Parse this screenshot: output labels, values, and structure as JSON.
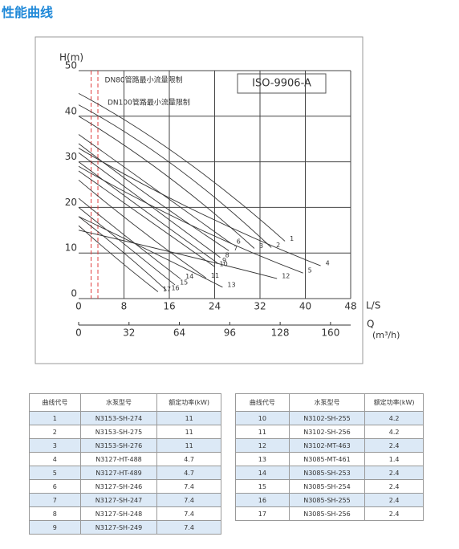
{
  "header": {
    "title": "性能曲线"
  },
  "chart_data": {
    "type": "line",
    "box_label": "ISO-9906-A",
    "y_label": "H(m)",
    "x_label": "L/S",
    "x2_label": "Q",
    "x2_unit": "(m³/h)",
    "xlim": [
      0,
      48
    ],
    "xticks": [
      0,
      8,
      16,
      24,
      32,
      40,
      48
    ],
    "x2lim": [
      0,
      172.8
    ],
    "x2ticks": [
      0,
      32,
      64,
      96,
      128,
      160
    ],
    "ylim": [
      0,
      50
    ],
    "yticks": [
      0,
      10,
      20,
      30,
      40,
      50
    ],
    "grid": true,
    "color": "#333333",
    "annotations": [
      {
        "text": "DN80管路最小流量限制",
        "x": 2.2,
        "color": "#e04040"
      },
      {
        "text": "DN100管路最小流量限制",
        "x": 3.4,
        "color": "#e04040"
      }
    ],
    "series": [
      {
        "name": "1",
        "x": [
          0,
          18,
          36.4
        ],
        "values": [
          45,
          31,
          12.6
        ]
      },
      {
        "name": "2",
        "x": [
          0,
          17,
          34
        ],
        "values": [
          42.5,
          29,
          11.2
        ]
      },
      {
        "name": "3",
        "x": [
          0,
          15.5,
          31
        ],
        "values": [
          40,
          27,
          11
        ]
      },
      {
        "name": "4",
        "x": [
          0,
          21,
          42.7
        ],
        "values": [
          33,
          19,
          7.2
        ]
      },
      {
        "name": "5",
        "x": [
          0,
          20,
          39.6
        ],
        "values": [
          29,
          16,
          5.6
        ]
      },
      {
        "name": "6",
        "x": [
          0,
          13.5,
          27
        ],
        "values": [
          36,
          24,
          12
        ]
      },
      {
        "name": "7",
        "x": [
          0,
          13,
          26.5
        ],
        "values": [
          34,
          22,
          10.5
        ]
      },
      {
        "name": "8",
        "x": [
          0,
          12.5,
          25
        ],
        "values": [
          32,
          20.5,
          9
        ]
      },
      {
        "name": "9",
        "x": [
          0,
          12,
          24.5
        ],
        "values": [
          30,
          19,
          7.8
        ]
      },
      {
        "name": "10",
        "x": [
          0,
          12,
          24
        ],
        "values": [
          28,
          17.5,
          7
        ]
      },
      {
        "name": "11",
        "x": [
          0,
          11,
          22.5
        ],
        "values": [
          26,
          15,
          4.5
        ]
      },
      {
        "name": "12",
        "x": [
          0,
          17,
          35
        ],
        "values": [
          15,
          10,
          4.4
        ]
      },
      {
        "name": "13",
        "x": [
          0,
          12.5,
          25.4
        ],
        "values": [
          18,
          10.5,
          2.5
        ]
      },
      {
        "name": "14",
        "x": [
          0,
          9,
          18
        ],
        "values": [
          22,
          13,
          4.3
        ]
      },
      {
        "name": "15",
        "x": [
          0,
          8.5,
          17
        ],
        "values": [
          20,
          11.5,
          3
        ]
      },
      {
        "name": "16",
        "x": [
          0,
          8,
          15.5
        ],
        "values": [
          18,
          10,
          1.8
        ]
      },
      {
        "name": "17",
        "x": [
          0,
          7,
          14
        ],
        "values": [
          16,
          8.5,
          1.5
        ]
      }
    ]
  },
  "tables": [
    {
      "header": [
        "曲线代号",
        "水泵型号",
        "额定功率(kW)"
      ],
      "rows": [
        [
          "1",
          "N3153-SH-274",
          "11"
        ],
        [
          "2",
          "N3153-SH-275",
          "11"
        ],
        [
          "3",
          "N3153-SH-276",
          "11"
        ],
        [
          "4",
          "N3127-HT-488",
          "4.7"
        ],
        [
          "5",
          "N3127-HT-489",
          "4.7"
        ],
        [
          "6",
          "N3127-SH-246",
          "7.4"
        ],
        [
          "7",
          "N3127-SH-247",
          "7.4"
        ],
        [
          "8",
          "N3127-SH-248",
          "7.4"
        ],
        [
          "9",
          "N3127-SH-249",
          "7.4"
        ]
      ]
    },
    {
      "header": [
        "曲线代号",
        "水泵型号",
        "额定功率(kW)"
      ],
      "rows": [
        [
          "10",
          "N3102-SH-255",
          "4.2"
        ],
        [
          "11",
          "N3102-SH-256",
          "4.2"
        ],
        [
          "12",
          "N3102-MT-463",
          "2.4"
        ],
        [
          "13",
          "N3085-MT-461",
          "1.4"
        ],
        [
          "14",
          "N3085-SH-253",
          "2.4"
        ],
        [
          "15",
          "N3085-SH-254",
          "2.4"
        ],
        [
          "16",
          "N3085-SH-255",
          "2.4"
        ],
        [
          "17",
          "N3085-SH-256",
          "2.4"
        ]
      ]
    }
  ]
}
